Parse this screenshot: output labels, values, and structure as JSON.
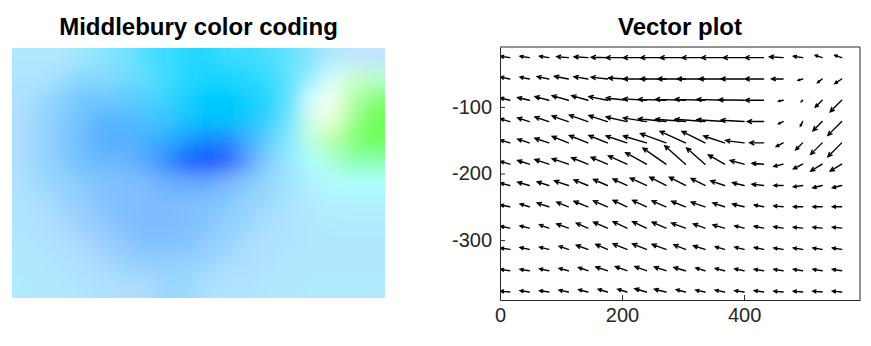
{
  "chart_data": [
    {
      "type": "image",
      "title": "Middlebury color coding",
      "tick_labels": false
    },
    {
      "type": "quiver",
      "title": "Vector plot",
      "color": "#000000",
      "xlim": [
        0,
        590
      ],
      "ylim": [
        -390,
        -10
      ],
      "xticks": [
        0,
        200,
        400
      ],
      "yticks": [
        -300,
        -200,
        -100
      ],
      "x": [
        16,
        48,
        80,
        112,
        144,
        176,
        208,
        240,
        272,
        304,
        336,
        368,
        400,
        432,
        464,
        496,
        528,
        560
      ],
      "y": [
        -26,
        -58,
        -90,
        -122,
        -154,
        -186,
        -218,
        -250,
        -282,
        -314,
        -346,
        -378
      ],
      "u": [
        [
          -2,
          -2,
          -2,
          -2.5,
          -3,
          -3.5,
          -4.5,
          -5,
          -5.5,
          -5.5,
          -5,
          -5,
          -4.5,
          -4,
          -3,
          -2,
          -1.5,
          -1.5
        ],
        [
          -2,
          -2,
          -2.5,
          -3,
          -3,
          -3.5,
          -4,
          -5,
          -5.5,
          -6,
          -6,
          -5.5,
          -5,
          -4,
          -2.5,
          -1,
          -1,
          -1.5
        ],
        [
          -2,
          -2.5,
          -3,
          -3.5,
          -3.5,
          -4,
          -4.5,
          -5,
          -6,
          -6.5,
          -6.5,
          -6,
          -5.5,
          -4,
          -1,
          -0.3,
          -1.5,
          -2.5
        ],
        [
          -2,
          -2.5,
          -3,
          -3.5,
          -4,
          -4,
          -4.5,
          -5,
          -6,
          -6.5,
          -6.5,
          -6,
          -5,
          -3.5,
          -1,
          -0.5,
          -2,
          -3
        ],
        [
          -2,
          -2.5,
          -3,
          -3.5,
          -4,
          -4,
          -4.5,
          -5,
          -5.5,
          -5.5,
          -5,
          -4.5,
          -4,
          -3,
          -1.5,
          -1.5,
          -2.5,
          -3
        ],
        [
          -2,
          -2.5,
          -3,
          -3.5,
          -3.5,
          -3.5,
          -4,
          -4.5,
          -5,
          -4.5,
          -4,
          -3.5,
          -3,
          -2.5,
          -2,
          -2,
          -2.5,
          -2.5
        ],
        [
          -2,
          -2.5,
          -2.5,
          -3,
          -3,
          -3,
          -3,
          -3.5,
          -3.5,
          -3.5,
          -3,
          -3,
          -2.5,
          -2.5,
          -2,
          -2,
          -2,
          -2
        ],
        [
          -2,
          -2,
          -2.5,
          -2.5,
          -3,
          -3,
          -3,
          -3,
          -3,
          -3,
          -3,
          -2.5,
          -2.5,
          -2,
          -2,
          -2,
          -2,
          -2
        ],
        [
          -2,
          -2,
          -2,
          -2.5,
          -2.5,
          -3,
          -3,
          -3,
          -3,
          -3,
          -2.5,
          -2.5,
          -2,
          -2,
          -2,
          -2,
          -2,
          -2
        ],
        [
          -2,
          -2,
          -2,
          -2,
          -2.5,
          -2.5,
          -3,
          -3,
          -3,
          -2.5,
          -2.5,
          -2,
          -2,
          -2,
          -2,
          -2,
          -2,
          -2
        ],
        [
          -2,
          -2,
          -2,
          -2,
          -2,
          -2.5,
          -2.5,
          -2.5,
          -2.5,
          -2.5,
          -2,
          -2,
          -2,
          -2,
          -2,
          -2,
          -2,
          -2
        ],
        [
          -2,
          -2,
          -2,
          -2,
          -2,
          -2,
          -2,
          -2.5,
          -2.5,
          -2,
          -2,
          -2,
          -2,
          -2,
          -2,
          -2,
          -2,
          -2
        ]
      ],
      "v": [
        [
          0.3,
          0.3,
          0.3,
          0.2,
          0.2,
          0.1,
          0,
          0,
          0,
          0,
          0,
          0,
          0,
          0,
          0.2,
          0.3,
          0.5,
          0.5
        ],
        [
          0.4,
          0.4,
          0.5,
          0.6,
          0.5,
          0.4,
          0.2,
          0,
          0,
          0,
          0,
          0,
          0,
          0,
          0,
          -0.3,
          -0.8,
          -1
        ],
        [
          0.5,
          0.6,
          0.8,
          1,
          1,
          0.8,
          0.5,
          0.3,
          0.2,
          0.2,
          0.2,
          0.2,
          0.1,
          0,
          -0.2,
          -0.3,
          -1.5,
          -2.5
        ],
        [
          0.6,
          0.8,
          1,
          1.2,
          1.4,
          1.3,
          1,
          0.8,
          0.6,
          0.5,
          0.5,
          0.4,
          0.3,
          0,
          -0.5,
          -1,
          -2,
          -3
        ],
        [
          0.6,
          0.8,
          1,
          1.4,
          1.6,
          1.6,
          1.5,
          1.5,
          2,
          2.5,
          2.5,
          1.5,
          0.5,
          0,
          -0.8,
          -1.5,
          -2.5,
          -3
        ],
        [
          0.6,
          0.8,
          1,
          1.2,
          1.4,
          1.5,
          1.8,
          2.5,
          3.5,
          4,
          3.5,
          2,
          0.8,
          0.2,
          -0.5,
          -1,
          -1.5,
          -1.5
        ],
        [
          0.5,
          0.7,
          0.8,
          1,
          1.2,
          1.3,
          1.4,
          1.6,
          1.8,
          1.8,
          1.5,
          1,
          0.6,
          0.3,
          0,
          -0.3,
          -0.5,
          -0.5
        ],
        [
          0.4,
          0.6,
          0.8,
          1,
          1.2,
          1.3,
          1.4,
          1.4,
          1.3,
          1.2,
          1,
          0.8,
          0.6,
          0.4,
          0.2,
          0,
          0,
          0
        ],
        [
          0.4,
          0.5,
          0.7,
          0.9,
          1.1,
          1.3,
          1.4,
          1.4,
          1.3,
          1.1,
          0.9,
          0.7,
          0.5,
          0.4,
          0.3,
          0.2,
          0.2,
          0.2
        ],
        [
          0.3,
          0.4,
          0.5,
          0.7,
          0.9,
          1.1,
          1.2,
          1.2,
          1.1,
          1,
          0.8,
          0.6,
          0.5,
          0.4,
          0.3,
          0.3,
          0.3,
          0.3
        ],
        [
          0.3,
          0.3,
          0.4,
          0.5,
          0.7,
          0.8,
          0.9,
          0.9,
          0.8,
          0.7,
          0.6,
          0.5,
          0.4,
          0.3,
          0.3,
          0.3,
          0.3,
          0.3
        ],
        [
          0.2,
          0.3,
          0.3,
          0.4,
          0.5,
          0.6,
          0.6,
          0.7,
          0.6,
          0.5,
          0.4,
          0.4,
          0.3,
          0.3,
          0.2,
          0.2,
          0.2,
          0.2
        ]
      ]
    }
  ]
}
